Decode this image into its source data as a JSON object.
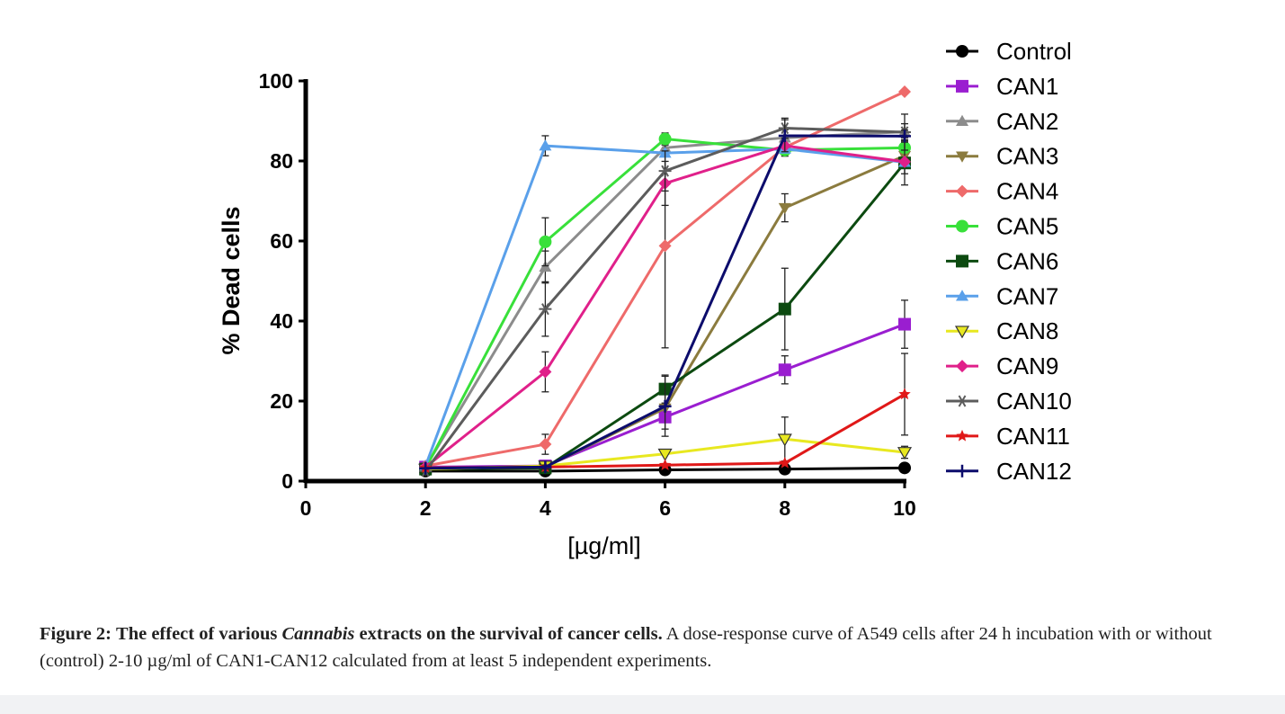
{
  "caption": {
    "figure_label": "Figure 2:",
    "title_part1": "The effect of various",
    "title_italic": "Cannabis",
    "title_part2": "extracts on the survival of cancer cells.",
    "body": "A dose-response curve of A549 cells after 24 h incubation with or without (control) 2-10 µg/ml of CAN1-CAN12 calculated from at least 5 independent experiments."
  },
  "chart_data": {
    "type": "line",
    "xlabel": "[µg/ml]",
    "ylabel": "% Dead cells",
    "xlim": [
      0,
      10
    ],
    "ylim": [
      0,
      100
    ],
    "x_ticks": [
      "0",
      "2",
      "4",
      "6",
      "8",
      "10"
    ],
    "y_ticks": [
      "0",
      "20",
      "40",
      "60",
      "80",
      "100"
    ],
    "legend_position": "right",
    "x": [
      2,
      4,
      6,
      8,
      10
    ],
    "series": [
      {
        "name": "Control",
        "color": "#000000",
        "marker": "circle",
        "values": [
          2.5,
          2.5,
          2.8,
          3.0,
          3.3
        ],
        "errors": [
          0,
          0.5,
          0,
          0,
          0.5
        ]
      },
      {
        "name": "CAN1",
        "color": "#9a1ed0",
        "marker": "square",
        "values": [
          3.5,
          3.8,
          16.0,
          27.8,
          39.2
        ],
        "errors": [
          0,
          0.5,
          3,
          3.5,
          6
        ]
      },
      {
        "name": "CAN2",
        "color": "#8c8c8c",
        "marker": "triangle-up",
        "values": [
          3.5,
          53.5,
          83.3,
          85.8,
          87.3
        ],
        "errors": [
          0,
          4,
          0,
          2,
          2
        ]
      },
      {
        "name": "CAN3",
        "color": "#8b7b3e",
        "marker": "triangle-down",
        "values": [
          3.3,
          3.5,
          18.2,
          68.3,
          81.3
        ],
        "errors": [
          0,
          0.5,
          0,
          3.5,
          4.5
        ]
      },
      {
        "name": "CAN4",
        "color": "#ee6a6a",
        "marker": "diamond",
        "values": [
          3.8,
          9.2,
          58.8,
          83.4,
          97.3
        ],
        "errors": [
          0,
          2.5,
          25.5,
          0,
          0
        ]
      },
      {
        "name": "CAN5",
        "color": "#38e03a",
        "marker": "circle",
        "values": [
          3.2,
          59.8,
          85.5,
          82.7,
          83.3
        ],
        "errors": [
          0,
          6,
          1.5,
          1.5,
          0
        ]
      },
      {
        "name": "CAN6",
        "color": "#0c4a10",
        "marker": "square",
        "values": [
          3.0,
          3.3,
          23.0,
          43.0,
          79.5
        ],
        "errors": [
          0,
          0.5,
          3.5,
          10.2,
          5.5
        ]
      },
      {
        "name": "CAN7",
        "color": "#5aa0ea",
        "marker": "triangle-up",
        "values": [
          3.8,
          83.8,
          82.0,
          83.0,
          79.7
        ],
        "errors": [
          0,
          2.5,
          0,
          0,
          0
        ]
      },
      {
        "name": "CAN8",
        "color": "#e8e820",
        "marker": "triangle-down-open",
        "values": [
          3.0,
          3.8,
          6.8,
          10.5,
          7.2
        ],
        "errors": [
          0,
          0.5,
          0,
          5.5,
          1.5
        ]
      },
      {
        "name": "CAN9",
        "color": "#e0208a",
        "marker": "diamond",
        "values": [
          3.5,
          27.3,
          74.4,
          83.8,
          79.8
        ],
        "errors": [
          0,
          5,
          5.5,
          0,
          0
        ]
      },
      {
        "name": "CAN10",
        "color": "#5c5c5c",
        "marker": "asterisk",
        "values": [
          2.5,
          43.0,
          77.5,
          88.2,
          87.2
        ],
        "errors": [
          0,
          6.8,
          5,
          2.5,
          4.5
        ]
      },
      {
        "name": "CAN11",
        "color": "#e01818",
        "marker": "star",
        "values": [
          3.3,
          3.5,
          4.0,
          4.5,
          21.7
        ],
        "errors": [
          0,
          0.5,
          0,
          0,
          10.2
        ]
      },
      {
        "name": "CAN12",
        "color": "#0c0c6c",
        "marker": "plus",
        "values": [
          3.2,
          3.5,
          18.7,
          86.3,
          86.2
        ],
        "errors": [
          0,
          0.5,
          7.5,
          4,
          1.5
        ]
      }
    ]
  }
}
